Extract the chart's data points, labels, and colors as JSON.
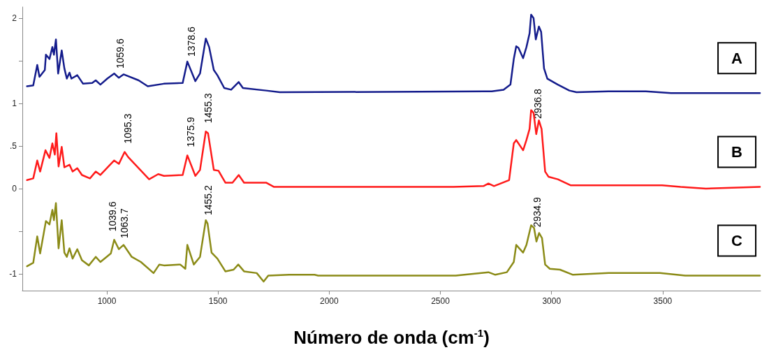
{
  "chart_data": {
    "type": "line",
    "xlabel": "Número de onda (cm$^{-1}$)",
    "xlim": [
      620,
      3940
    ],
    "xticks": [
      1000,
      1500,
      2000,
      2500,
      3000,
      3500
    ],
    "ylim": [
      -1.2,
      2.13
    ],
    "yticks": [
      -1,
      {
        "value": -0.5,
        "label": null
      },
      0,
      {
        "value": 0.5,
        "label": ".5"
      },
      1,
      {
        "value": 1.5,
        "label": null
      },
      2
    ],
    "grid": false,
    "legend": false,
    "marker": "none",
    "line_style": "solid",
    "series": [
      {
        "name": "A",
        "color": "#141c8c",
        "x": [
          641,
          669,
          687,
          697,
          721,
          726,
          742,
          755,
          762,
          771,
          781,
          797,
          809,
          820,
          832,
          841,
          867,
          893,
          934,
          950,
          971,
          1002,
          1033,
          1054,
          1075,
          1143,
          1184,
          1256,
          1341,
          1362,
          1398,
          1419,
          1445,
          1460,
          1481,
          1497,
          1528,
          1559,
          1593,
          1612,
          1716,
          1778,
          2700,
          2731,
          2784,
          2815,
          2830,
          2841,
          2851,
          2872,
          2887,
          2901,
          2908,
          2919,
          2929,
          2943,
          2953,
          2966,
          2981,
          3028,
          3080,
          3112,
          3256,
          3424,
          3537,
          3937
        ],
        "values": [
          1.2,
          1.21,
          1.45,
          1.31,
          1.39,
          1.57,
          1.52,
          1.66,
          1.57,
          1.75,
          1.35,
          1.62,
          1.41,
          1.29,
          1.36,
          1.29,
          1.33,
          1.23,
          1.24,
          1.27,
          1.22,
          1.29,
          1.35,
          1.3,
          1.34,
          1.27,
          1.2,
          1.23,
          1.24,
          1.49,
          1.26,
          1.35,
          1.76,
          1.66,
          1.39,
          1.33,
          1.18,
          1.16,
          1.25,
          1.18,
          1.15,
          1.13,
          1.14,
          1.14,
          1.16,
          1.22,
          1.52,
          1.67,
          1.65,
          1.53,
          1.66,
          1.82,
          2.04,
          2.0,
          1.75,
          1.9,
          1.84,
          1.41,
          1.29,
          1.22,
          1.15,
          1.13,
          1.14,
          1.14,
          1.12,
          1.12
        ]
      },
      {
        "name": "B",
        "color": "#ff1a1a",
        "x": [
          641,
          669,
          687,
          700,
          724,
          742,
          755,
          766,
          773,
          783,
          797,
          809,
          832,
          846,
          867,
          888,
          924,
          950,
          971,
          1033,
          1054,
          1080,
          1096,
          1190,
          1231,
          1257,
          1341,
          1362,
          1398,
          1419,
          1445,
          1455,
          1481,
          1502,
          1533,
          1565,
          1593,
          1617,
          1716,
          1752,
          2559,
          2694,
          2716,
          2741,
          2809,
          2830,
          2841,
          2872,
          2887,
          2901,
          2908,
          2919,
          2931,
          2943,
          2955,
          2971,
          2986,
          3028,
          3085,
          3299,
          3497,
          3580,
          3694,
          3937
        ],
        "values": [
          0.1,
          0.12,
          0.33,
          0.2,
          0.45,
          0.36,
          0.53,
          0.4,
          0.65,
          0.26,
          0.49,
          0.25,
          0.28,
          0.2,
          0.24,
          0.16,
          0.12,
          0.2,
          0.16,
          0.33,
          0.29,
          0.43,
          0.37,
          0.11,
          0.17,
          0.15,
          0.16,
          0.39,
          0.15,
          0.22,
          0.67,
          0.65,
          0.22,
          0.21,
          0.07,
          0.07,
          0.16,
          0.07,
          0.07,
          0.02,
          0.02,
          0.03,
          0.06,
          0.03,
          0.1,
          0.53,
          0.57,
          0.45,
          0.57,
          0.7,
          0.92,
          0.89,
          0.64,
          0.8,
          0.7,
          0.2,
          0.14,
          0.11,
          0.04,
          0.04,
          0.04,
          0.02,
          0.0,
          0.02
        ]
      },
      {
        "name": "C",
        "color": "#8b8b17",
        "x": [
          641,
          669,
          687,
          700,
          726,
          742,
          755,
          762,
          771,
          783,
          797,
          809,
          820,
          832,
          846,
          867,
          888,
          919,
          950,
          971,
          1018,
          1033,
          1054,
          1075,
          1112,
          1153,
          1210,
          1236,
          1257,
          1330,
          1353,
          1362,
          1391,
          1419,
          1445,
          1453,
          1471,
          1497,
          1533,
          1570,
          1591,
          1617,
          1674,
          1705,
          1726,
          1820,
          1934,
          1950,
          2569,
          2716,
          2747,
          2799,
          2830,
          2841,
          2872,
          2887,
          2908,
          2921,
          2932,
          2944,
          2957,
          2971,
          2992,
          3038,
          3096,
          3257,
          3487,
          3601,
          3937
        ],
        "values": [
          -0.91,
          -0.87,
          -0.56,
          -0.76,
          -0.38,
          -0.42,
          -0.25,
          -0.37,
          -0.17,
          -0.7,
          -0.37,
          -0.75,
          -0.8,
          -0.7,
          -0.82,
          -0.71,
          -0.84,
          -0.9,
          -0.8,
          -0.86,
          -0.76,
          -0.6,
          -0.71,
          -0.66,
          -0.8,
          -0.86,
          -0.99,
          -0.89,
          -0.9,
          -0.89,
          -0.94,
          -0.66,
          -0.89,
          -0.8,
          -0.37,
          -0.41,
          -0.75,
          -0.82,
          -0.97,
          -0.95,
          -0.89,
          -0.97,
          -0.99,
          -1.09,
          -1.02,
          -1.01,
          -1.01,
          -1.02,
          -1.02,
          -0.98,
          -1.01,
          -0.98,
          -0.86,
          -0.66,
          -0.75,
          -0.66,
          -0.43,
          -0.46,
          -0.62,
          -0.52,
          -0.58,
          -0.89,
          -0.94,
          -0.95,
          -1.01,
          -0.99,
          -0.99,
          -1.02,
          -1.02
        ]
      }
    ],
    "annotations": [
      {
        "text": "1059.6",
        "x": 1059.6,
        "y": 1.31
      },
      {
        "text": "1378.6",
        "x": 1378.6,
        "y": 1.45
      },
      {
        "text": "1455.3",
        "x": 1455.3,
        "y": 0.67
      },
      {
        "text": "1095.3",
        "x": 1095.3,
        "y": 0.43
      },
      {
        "text": "1375.9",
        "x": 1375.9,
        "y": 0.39
      },
      {
        "text": "2936.8",
        "x": 2936.8,
        "y": 0.72
      },
      {
        "text": "1039.6",
        "x": 1039.6,
        "y": -0.6
      },
      {
        "text": "1063.7",
        "x": 1063.7,
        "y": -0.68
      },
      {
        "text": "1455.2",
        "x": 1455.2,
        "y": -0.41
      },
      {
        "text": "2934.9",
        "x": 2934.9,
        "y": -0.55
      }
    ]
  }
}
